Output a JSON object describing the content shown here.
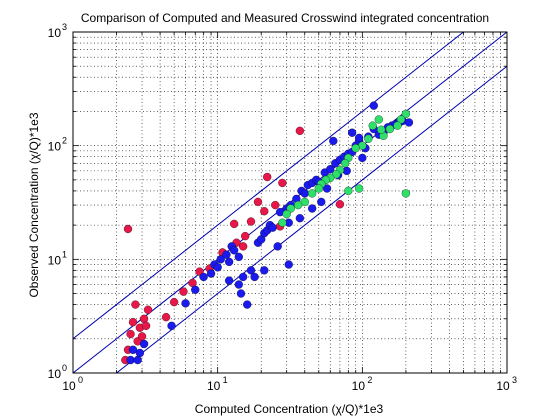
{
  "chart_data": {
    "type": "scatter",
    "title": "Comparison of Computed and Measured Crosswind integrated concentration",
    "xlabel": "Computed Concentration (χ/Q)*1e3",
    "ylabel": "Observed Concentration (χ/Q)*1e3",
    "xscale": "log",
    "yscale": "log",
    "xlim": [
      1,
      1000
    ],
    "ylim": [
      1,
      1000
    ],
    "grid": "major and minor, dotted",
    "x_ticks": [
      {
        "value": 1,
        "base": "10",
        "exp": "0"
      },
      {
        "value": 10,
        "base": "10",
        "exp": "1"
      },
      {
        "value": 100,
        "base": "10",
        "exp": "2"
      },
      {
        "value": 1000,
        "base": "10",
        "exp": "3"
      }
    ],
    "y_ticks": [
      {
        "value": 1,
        "base": "10",
        "exp": "0"
      },
      {
        "value": 10,
        "base": "10",
        "exp": "1"
      },
      {
        "value": 100,
        "base": "10",
        "exp": "2"
      },
      {
        "value": 1000,
        "base": "10",
        "exp": "3"
      }
    ],
    "reference_lines": [
      {
        "factor": 0.5,
        "color": "#0000b0"
      },
      {
        "factor": 1,
        "color": "#0000b0"
      },
      {
        "factor": 2,
        "color": "#0000b0"
      }
    ],
    "series": [
      {
        "color": "#e8174a",
        "points": [
          [
            2.4,
            18.5
          ],
          [
            2.3,
            1.3
          ],
          [
            2.4,
            1.6
          ],
          [
            2.5,
            2.2
          ],
          [
            2.6,
            2.8
          ],
          [
            2.7,
            4.0
          ],
          [
            2.8,
            1.9
          ],
          [
            2.9,
            2.5
          ],
          [
            3.0,
            2.1
          ],
          [
            3.1,
            3.0
          ],
          [
            3.2,
            2.6
          ],
          [
            3.3,
            3.6
          ],
          [
            4.4,
            3.1
          ],
          [
            5.0,
            4.2
          ],
          [
            5.8,
            5.2
          ],
          [
            6.7,
            6.2
          ],
          [
            7.5,
            7.8
          ],
          [
            8.8,
            8.3
          ],
          [
            10.8,
            11.5
          ],
          [
            13.5,
            14.0
          ],
          [
            15.0,
            13.0
          ],
          [
            15.5,
            16.0
          ],
          [
            13.0,
            20.5
          ],
          [
            17.0,
            21.5
          ],
          [
            22.0,
            53.0
          ],
          [
            21.0,
            26.5
          ],
          [
            28.0,
            47.0
          ],
          [
            37.0,
            135.0
          ],
          [
            70.0,
            30.5
          ],
          [
            25.0,
            30.0
          ],
          [
            19.0,
            32.0
          ],
          [
            27.0,
            19.5
          ]
        ]
      },
      {
        "color": "#1a1aee",
        "points": [
          [
            2.5,
            1.3
          ],
          [
            2.6,
            1.6
          ],
          [
            2.8,
            1.3
          ],
          [
            2.9,
            1.5
          ],
          [
            3.1,
            1.8
          ],
          [
            4.8,
            2.6
          ],
          [
            6.0,
            4.1
          ],
          [
            7.0,
            5.4
          ],
          [
            8.0,
            7.0
          ],
          [
            9.5,
            9.0
          ],
          [
            10.5,
            10.0
          ],
          [
            11.5,
            11.0
          ],
          [
            12.0,
            9.5
          ],
          [
            12.5,
            13.0
          ],
          [
            13.0,
            12.0
          ],
          [
            14.0,
            10.5
          ],
          [
            15.0,
            7.0
          ],
          [
            16.0,
            4.0
          ],
          [
            17.0,
            8.0
          ],
          [
            14.5,
            5.0
          ],
          [
            19.0,
            14.0
          ],
          [
            20.0,
            15.0
          ],
          [
            21.0,
            17.0
          ],
          [
            22.0,
            18.0
          ],
          [
            23.0,
            20.0
          ],
          [
            24.0,
            19.0
          ],
          [
            27.0,
            26.0
          ],
          [
            30.0,
            28.0
          ],
          [
            32.0,
            30.0
          ],
          [
            35.0,
            34.0
          ],
          [
            38.0,
            40.0
          ],
          [
            40.0,
            38.0
          ],
          [
            42.0,
            45.0
          ],
          [
            45.0,
            47.0
          ],
          [
            48.0,
            50.0
          ],
          [
            50.0,
            48.0
          ],
          [
            55.0,
            58.0
          ],
          [
            60.0,
            62.0
          ],
          [
            65.0,
            70.0
          ],
          [
            70.0,
            75.0
          ],
          [
            75.0,
            80.0
          ],
          [
            80.0,
            85.0
          ],
          [
            85.0,
            88.0
          ],
          [
            90.0,
            100.0
          ],
          [
            95.0,
            110.0
          ],
          [
            105.0,
            95.0
          ],
          [
            110.0,
            120.0
          ],
          [
            120.0,
            140.0
          ],
          [
            130.0,
            125.0
          ],
          [
            140.0,
            130.0
          ],
          [
            150.0,
            145.0
          ],
          [
            160.0,
            150.0
          ],
          [
            170.0,
            155.0
          ],
          [
            180.0,
            160.0
          ],
          [
            190.0,
            165.0
          ],
          [
            210.0,
            160.0
          ],
          [
            120.0,
            225.0
          ],
          [
            85.0,
            130.0
          ],
          [
            95.0,
            117.0
          ],
          [
            63.0,
            110.0
          ],
          [
            31.0,
            9.0
          ],
          [
            26.0,
            13.0
          ],
          [
            21.0,
            8.0
          ],
          [
            18.0,
            7.0
          ],
          [
            9.0,
            7.5
          ],
          [
            10.0,
            8.5
          ],
          [
            12.0,
            6.5
          ],
          [
            14.0,
            6.0
          ],
          [
            31.0,
            21.0
          ],
          [
            37.0,
            23.0
          ],
          [
            45.0,
            28.0
          ],
          [
            57.0,
            42.0
          ],
          [
            52.0,
            32.0
          ],
          [
            68.0,
            55.0
          ],
          [
            78.0,
            60.0
          ],
          [
            100.0,
            78.0
          ]
        ]
      },
      {
        "color": "#2ee06a",
        "points": [
          [
            200.0,
            190.0
          ],
          [
            185.0,
            170.0
          ],
          [
            175.0,
            150.0
          ],
          [
            155.0,
            140.0
          ],
          [
            140.0,
            122.0
          ],
          [
            130.0,
            170.0
          ],
          [
            118.0,
            150.0
          ],
          [
            110.0,
            115.0
          ],
          [
            100.0,
            100.0
          ],
          [
            90.0,
            95.0
          ],
          [
            80.0,
            78.0
          ],
          [
            76.0,
            70.0
          ],
          [
            70.0,
            61.0
          ],
          [
            66.0,
            56.0
          ],
          [
            60.0,
            52.0
          ],
          [
            56.0,
            50.0
          ],
          [
            52.0,
            46.0
          ],
          [
            50.0,
            42.0
          ],
          [
            45.0,
            38.0
          ],
          [
            40.0,
            32.0
          ],
          [
            36.0,
            30.0
          ],
          [
            32.0,
            28.0
          ],
          [
            30.0,
            25.0
          ],
          [
            28.0,
            21.0
          ],
          [
            95.0,
            42.0
          ],
          [
            80.0,
            40.0
          ],
          [
            200.0,
            38.0
          ],
          [
            135.0,
            138.0
          ]
        ]
      }
    ]
  }
}
